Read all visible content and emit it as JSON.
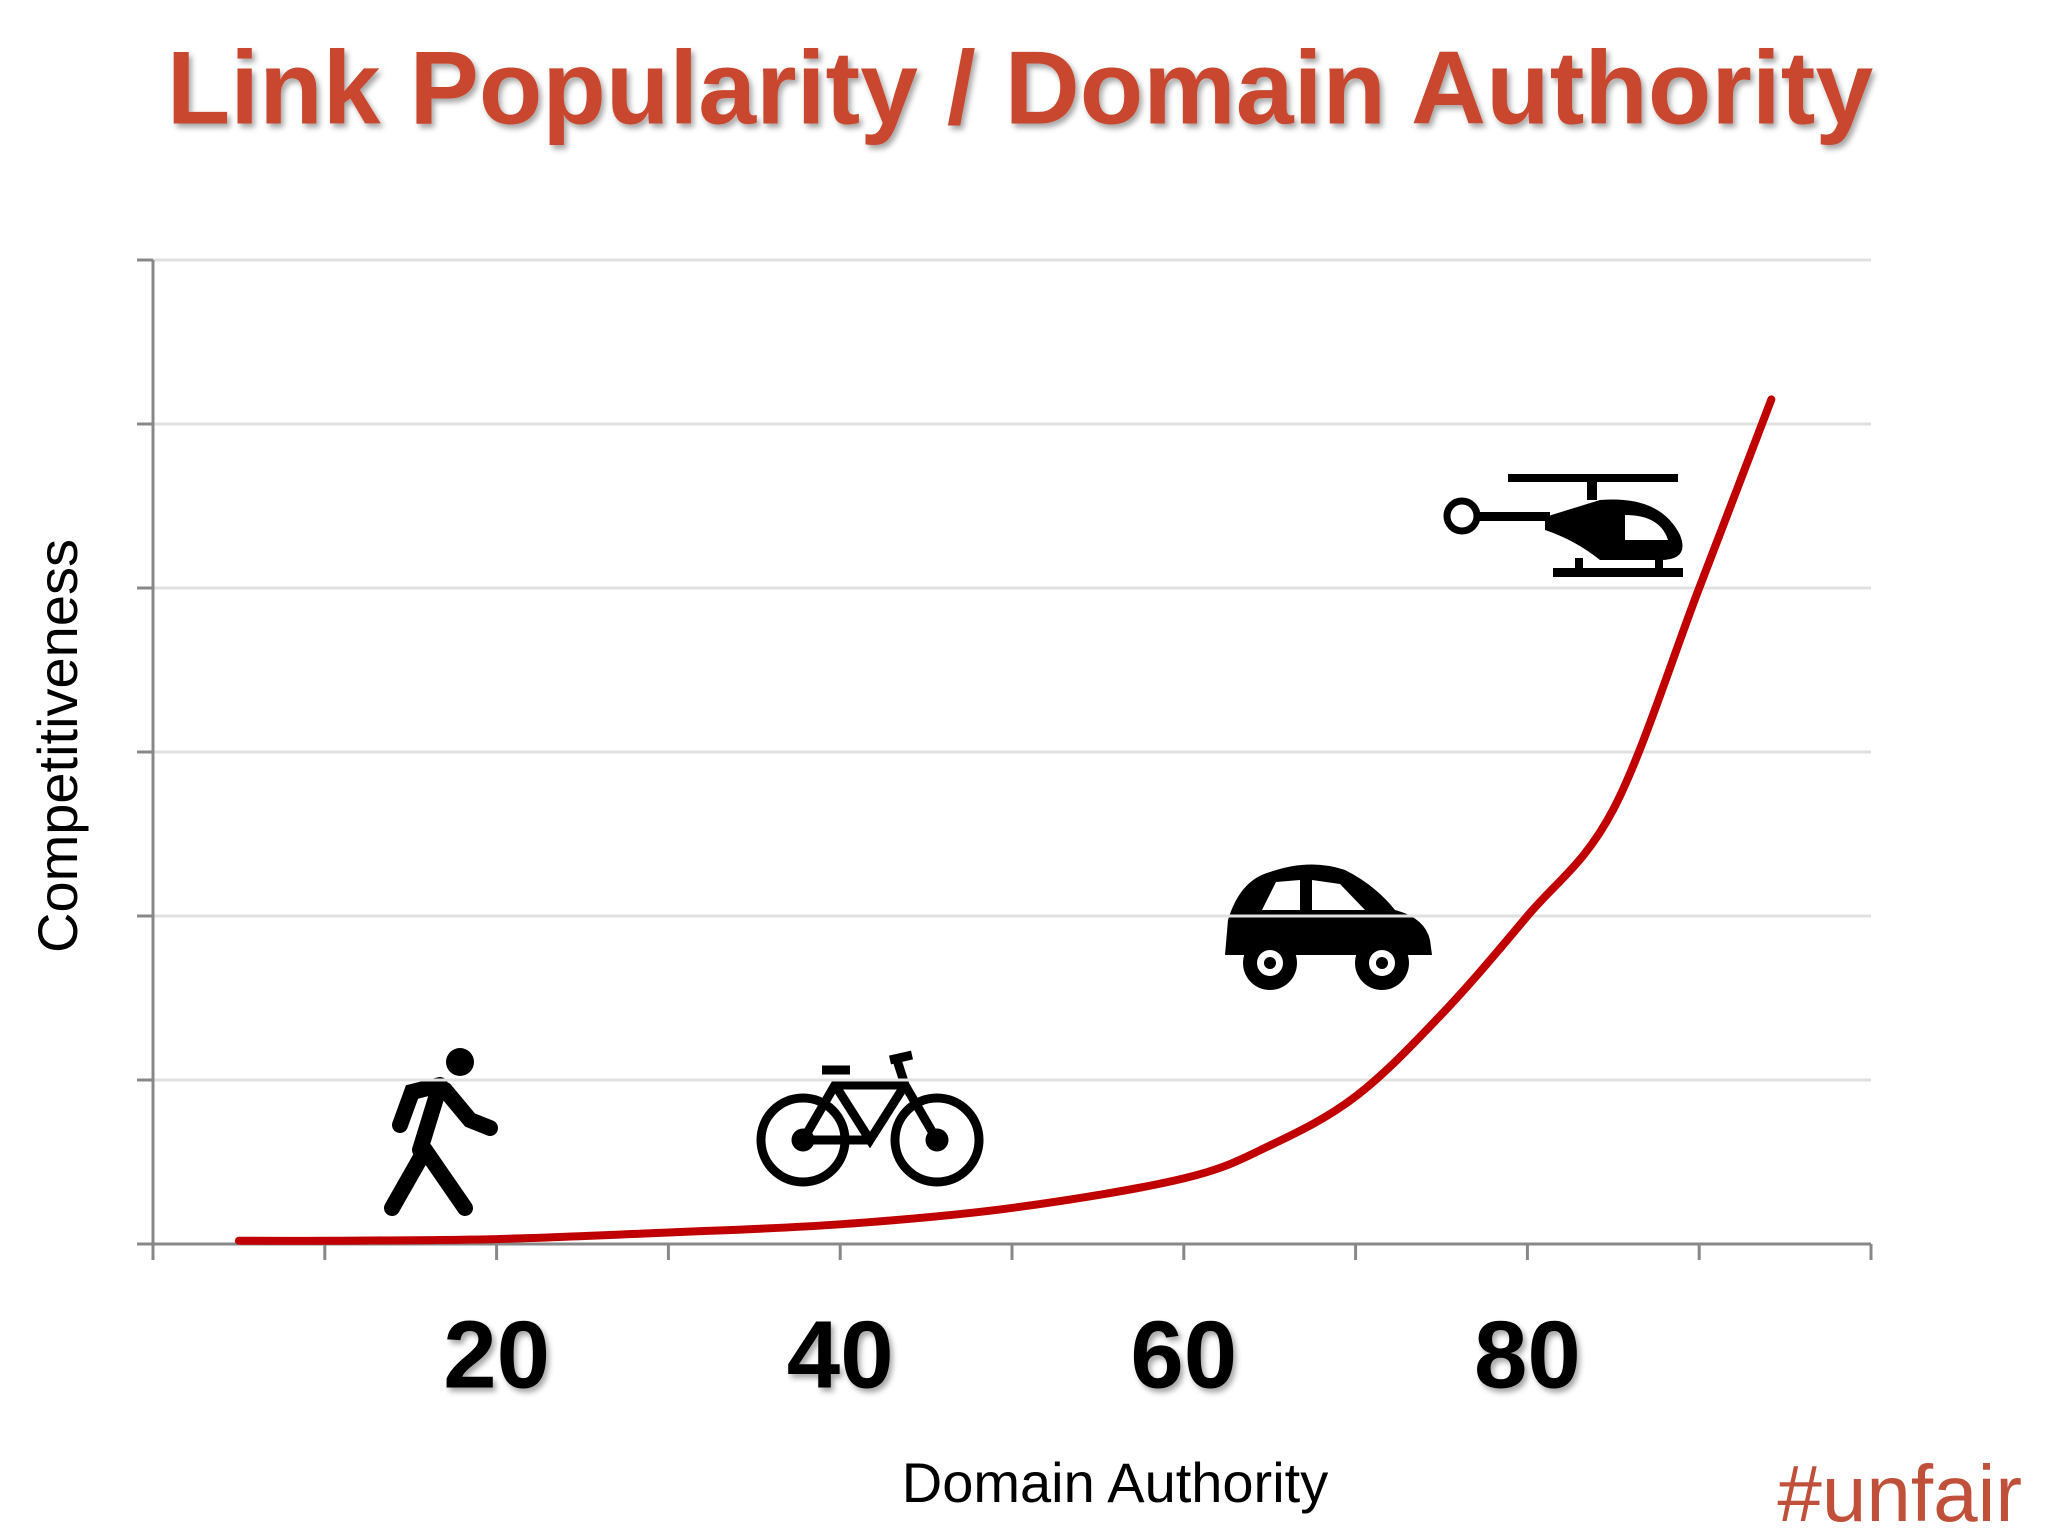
{
  "chart_data": {
    "type": "line",
    "title": "Link Popularity / Domain Authority",
    "x_label": "Domain Authority",
    "y_label": "Competitiveness",
    "annotation": "#unfair",
    "x": [
      5,
      10,
      20,
      30,
      40,
      50,
      60,
      65,
      70,
      75,
      80,
      85,
      90,
      94.2
    ],
    "series": [
      {
        "color": "#c00000",
        "values": [
          0.02,
          0.02,
          0.03,
          0.07,
          0.12,
          0.22,
          0.4,
          0.6,
          0.9,
          1.4,
          2.0,
          2.65,
          4.0,
          5.15
        ]
      }
    ],
    "xlim": [
      0,
      100
    ],
    "ylim": [
      0,
      6
    ],
    "xticks": [
      20,
      40,
      60,
      80
    ],
    "x_minor_ticks": [
      0,
      10,
      20,
      30,
      40,
      50,
      60,
      70,
      80,
      90,
      100
    ],
    "y_minor_ticks": [
      0,
      1,
      2,
      3,
      4,
      5,
      6
    ],
    "grid": true
  }
}
